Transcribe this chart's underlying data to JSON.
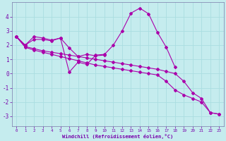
{
  "xlabel": "Windchill (Refroidissement éolien,°C)",
  "background_color": "#c5ecee",
  "grid_color": "#aadde0",
  "line_color": "#aa00aa",
  "spine_color": "#7a7aaa",
  "tick_color": "#7700aa",
  "xlim": [
    -0.5,
    23.5
  ],
  "ylim": [
    -3.7,
    5.0
  ],
  "xticks": [
    0,
    1,
    2,
    3,
    4,
    5,
    6,
    7,
    8,
    9,
    10,
    11,
    12,
    13,
    14,
    15,
    16,
    17,
    18,
    19,
    20,
    21,
    22,
    23
  ],
  "yticks": [
    -3,
    -2,
    -1,
    0,
    1,
    2,
    3,
    4
  ],
  "series": [
    [
      0,
      2.6
    ],
    [
      1,
      2.0
    ],
    [
      2,
      2.6
    ],
    [
      3,
      2.5
    ],
    [
      4,
      2.35
    ],
    [
      5,
      2.5
    ],
    [
      6,
      0.1
    ],
    [
      7,
      0.8
    ],
    [
      8,
      0.65
    ],
    [
      9,
      1.3
    ],
    [
      10,
      1.35
    ],
    [
      11,
      2.0
    ],
    [
      12,
      3.0
    ],
    [
      13,
      4.25
    ],
    [
      14,
      4.6
    ],
    [
      15,
      4.2
    ],
    [
      16,
      2.9
    ],
    [
      17,
      1.85
    ],
    [
      18,
      0.45
    ]
  ],
  "series2": [
    [
      0,
      2.6
    ],
    [
      1,
      2.0
    ],
    [
      2,
      2.4
    ],
    [
      3,
      2.4
    ],
    [
      4,
      2.3
    ],
    [
      5,
      2.5
    ],
    [
      6,
      1.8
    ],
    [
      7,
      1.2
    ],
    [
      8,
      1.35
    ],
    [
      9,
      1.25
    ],
    [
      10,
      1.3
    ]
  ],
  "series3": [
    [
      0,
      2.6
    ],
    [
      1,
      1.9
    ],
    [
      2,
      1.75
    ],
    [
      3,
      1.6
    ],
    [
      4,
      1.5
    ],
    [
      5,
      1.4
    ],
    [
      6,
      1.3
    ],
    [
      7,
      1.2
    ],
    [
      8,
      1.1
    ],
    [
      9,
      1.0
    ],
    [
      10,
      0.9
    ],
    [
      11,
      0.8
    ],
    [
      12,
      0.7
    ],
    [
      13,
      0.6
    ],
    [
      14,
      0.5
    ],
    [
      15,
      0.4
    ],
    [
      16,
      0.3
    ],
    [
      17,
      0.15
    ],
    [
      18,
      0.0
    ],
    [
      19,
      -0.55
    ],
    [
      20,
      -1.35
    ],
    [
      21,
      -1.75
    ],
    [
      22,
      -2.75
    ],
    [
      23,
      -2.85
    ]
  ],
  "series4": [
    [
      0,
      2.6
    ],
    [
      1,
      1.85
    ],
    [
      2,
      1.65
    ],
    [
      3,
      1.5
    ],
    [
      4,
      1.35
    ],
    [
      5,
      1.2
    ],
    [
      6,
      1.05
    ],
    [
      7,
      0.9
    ],
    [
      8,
      0.75
    ],
    [
      9,
      0.6
    ],
    [
      10,
      0.5
    ],
    [
      11,
      0.4
    ],
    [
      12,
      0.3
    ],
    [
      13,
      0.2
    ],
    [
      14,
      0.1
    ],
    [
      15,
      0.0
    ],
    [
      16,
      -0.1
    ],
    [
      17,
      -0.55
    ],
    [
      18,
      -1.15
    ],
    [
      19,
      -1.5
    ],
    [
      20,
      -1.75
    ],
    [
      21,
      -2.0
    ],
    [
      22,
      -2.75
    ],
    [
      23,
      -2.85
    ]
  ]
}
